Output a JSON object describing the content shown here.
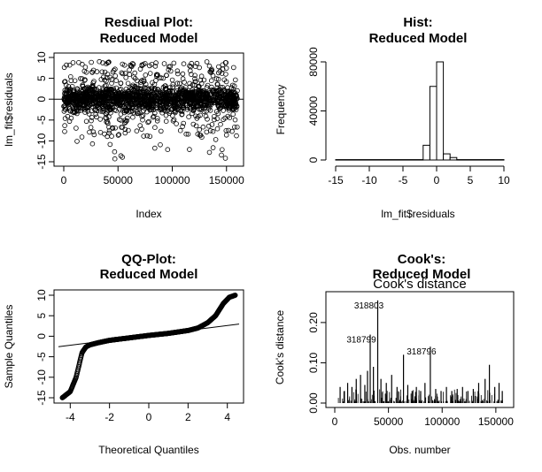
{
  "chart_data": [
    {
      "type": "scatter",
      "title_line1": "Resdiual Plot:",
      "title_line2": "Reduced Model",
      "xlabel": "Index",
      "ylabel": "lm_fit$residuals",
      "xticks": [
        "0",
        "50000",
        "100000",
        "150000"
      ],
      "yticks": [
        "-15",
        "-10",
        "-5",
        "0",
        "5",
        "10"
      ],
      "xlim": [
        0,
        160000
      ],
      "ylim": [
        -15,
        10
      ],
      "point_density": "dense band of about 160000 residual points, mostly between -5 and 5",
      "approx_range": [
        -15,
        10
      ]
    },
    {
      "type": "bar",
      "title_line1": "Hist:",
      "title_line2": "Reduced Model",
      "xlabel": "lm_fit$residuals",
      "ylabel": "Frequency",
      "xticks": [
        "-15",
        "-10",
        "-5",
        "0",
        "5",
        "10"
      ],
      "yticks": [
        "0",
        "40000",
        "80000"
      ],
      "xlim": [
        -15,
        10
      ],
      "ylim": [
        0,
        80000
      ],
      "bins": [
        {
          "x0": -15,
          "x1": -2,
          "count": 300
        },
        {
          "x0": -2,
          "x1": -1,
          "count": 12000
        },
        {
          "x0": -1,
          "x1": 0,
          "count": 60000
        },
        {
          "x0": 0,
          "x1": 1,
          "count": 80000
        },
        {
          "x0": 1,
          "x1": 2,
          "count": 5000
        },
        {
          "x0": 2,
          "x1": 3,
          "count": 2000
        },
        {
          "x0": 3,
          "x1": 10,
          "count": 300
        }
      ]
    },
    {
      "type": "scatter",
      "title_line1": "QQ-Plot:",
      "title_line2": "Reduced Model",
      "xlabel": "Theoretical Quantiles",
      "ylabel": "Sample Quantiles",
      "xticks": [
        "-4",
        "-2",
        "0",
        "2",
        "4"
      ],
      "yticks": [
        "-15",
        "-10",
        "-5",
        "0",
        "5",
        "10"
      ],
      "xlim": [
        -4.6,
        4.6
      ],
      "ylim": [
        -15,
        10
      ],
      "qq_curve": [
        [
          -4.4,
          -15
        ],
        [
          -4.0,
          -13.5
        ],
        [
          -3.7,
          -10
        ],
        [
          -3.5,
          -6
        ],
        [
          -3.4,
          -4
        ],
        [
          -3.2,
          -2.6
        ],
        [
          -3.0,
          -2.1
        ],
        [
          -2.5,
          -1.5
        ],
        [
          -2.0,
          -1.0
        ],
        [
          -1.0,
          -0.4
        ],
        [
          0.0,
          0.2
        ],
        [
          1.0,
          0.7
        ],
        [
          2.0,
          1.4
        ],
        [
          2.5,
          2.0
        ],
        [
          3.0,
          3.3
        ],
        [
          3.4,
          5.0
        ],
        [
          3.8,
          8.0
        ],
        [
          4.1,
          9.5
        ],
        [
          4.4,
          10
        ]
      ],
      "qq_line": {
        "intercept": 0.2,
        "slope": 0.6
      }
    },
    {
      "type": "bar",
      "title_line1": "Cook's:",
      "title_line2": "Reduced Model",
      "subtitle": "Cook's distance",
      "xlabel": "Obs. number",
      "ylabel": "Cook's distance",
      "xticks": [
        "0",
        "50000",
        "100000",
        "150000"
      ],
      "yticks": [
        "0.00",
        "0.10",
        "0.20"
      ],
      "xlim": [
        0,
        160000
      ],
      "ylim": [
        0,
        0.27
      ],
      "spikes": [
        [
          5000,
          0.04
        ],
        [
          9000,
          0.03
        ],
        [
          12000,
          0.05
        ],
        [
          16000,
          0.04
        ],
        [
          20000,
          0.06
        ],
        [
          24000,
          0.07
        ],
        [
          28000,
          0.045
        ],
        [
          30500,
          0.08
        ],
        [
          33000,
          0.17
        ],
        [
          36000,
          0.09
        ],
        [
          40000,
          0.255
        ],
        [
          43000,
          0.06
        ],
        [
          48000,
          0.05
        ],
        [
          53000,
          0.07
        ],
        [
          58000,
          0.04
        ],
        [
          64000,
          0.12
        ],
        [
          68000,
          0.045
        ],
        [
          72000,
          0.03
        ],
        [
          76000,
          0.04
        ],
        [
          80000,
          0.03
        ],
        [
          84000,
          0.05
        ],
        [
          89000,
          0.14
        ],
        [
          94000,
          0.035
        ],
        [
          99000,
          0.03
        ],
        [
          104000,
          0.04
        ],
        [
          109000,
          0.03
        ],
        [
          114000,
          0.035
        ],
        [
          119000,
          0.04
        ],
        [
          124000,
          0.03
        ],
        [
          129000,
          0.035
        ],
        [
          134000,
          0.05
        ],
        [
          140000,
          0.06
        ],
        [
          144000,
          0.095
        ],
        [
          149000,
          0.04
        ],
        [
          153000,
          0.05
        ],
        [
          156000,
          0.03
        ]
      ],
      "labels": [
        {
          "text": "318803",
          "x": 40000,
          "y": 0.255
        },
        {
          "text": "318799",
          "x": 33000,
          "y": 0.17
        },
        {
          "text": "318796",
          "x": 89000,
          "y": 0.14
        }
      ]
    }
  ]
}
